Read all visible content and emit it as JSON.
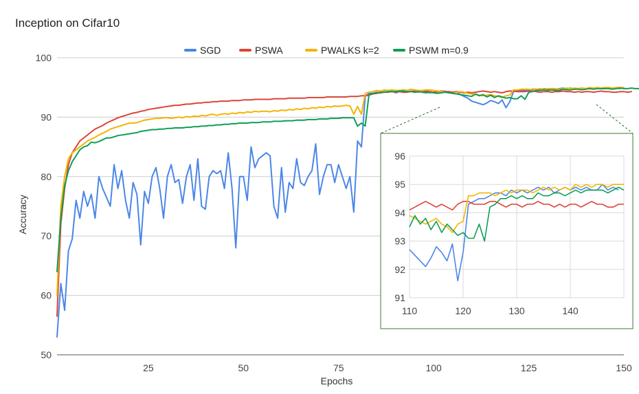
{
  "chart_data": {
    "type": "line",
    "title": "Inception on Cifar10",
    "xlabel": "Epochs",
    "ylabel": "Accuracy",
    "xlim": [
      1,
      150
    ],
    "ylim": [
      50,
      100
    ],
    "x_ticks": [
      "25",
      "50",
      "75",
      "100",
      "125",
      "150"
    ],
    "y_ticks": [
      "50",
      "60",
      "70",
      "80",
      "90",
      "100"
    ],
    "legend_position": "top",
    "series": [
      {
        "name": "SGD",
        "color": "#4a86e8",
        "values": [
          53,
          62,
          57.5,
          67.5,
          69.5,
          76,
          73,
          77.5,
          75,
          77,
          73,
          80,
          78,
          76.5,
          75,
          82,
          78,
          81,
          76,
          73,
          79,
          77,
          68.5,
          77.5,
          75.5,
          80,
          81.5,
          78,
          73,
          80,
          82,
          79,
          79.5,
          75.5,
          80,
          82,
          76,
          83,
          75,
          74.5,
          80,
          81,
          80.5,
          81,
          78,
          84,
          78,
          68,
          80,
          80,
          76,
          85,
          81.5,
          83,
          83.5,
          84,
          83.5,
          75,
          73,
          81.5,
          74,
          79,
          78,
          83,
          79,
          78.5,
          80,
          81,
          85.5,
          77,
          80,
          82,
          82,
          79,
          82,
          80,
          78,
          80,
          74,
          86,
          85,
          93.5,
          94,
          94,
          94.2,
          94.1,
          94.3,
          94.2,
          94.4,
          94.1,
          94.3,
          94.2,
          94.2,
          94.4,
          94.3,
          94.2,
          94.5,
          94.3,
          94.1,
          94.2,
          94.3,
          94.2,
          94.4,
          94.1,
          94,
          94.3,
          93.8,
          93.5,
          93.2,
          92.7,
          92.5,
          92.3,
          92.1,
          92.4,
          92.8,
          92.6,
          92.3,
          92.9,
          91.6,
          92.6,
          94.3,
          94.4,
          94.5,
          94.5,
          94.6,
          94.7,
          94.7,
          94.6,
          94.8,
          94.7,
          94.8,
          94.7,
          94.8,
          94.9,
          94.8,
          94.9,
          94.7,
          94.8,
          94.9,
          94.8,
          94.9,
          94.8,
          94.9,
          94.8,
          94.8,
          95,
          94.8,
          94.9,
          94.8
        ]
      },
      {
        "name": "PSWA",
        "color": "#db4437",
        "values": [
          56.5,
          72,
          78,
          82,
          84,
          85,
          86,
          86.5,
          87,
          87.5,
          88,
          88.3,
          88.6,
          89,
          89.3,
          89.6,
          89.9,
          90.1,
          90.3,
          90.5,
          90.7,
          90.8,
          91,
          91.1,
          91.3,
          91.4,
          91.5,
          91.6,
          91.7,
          91.8,
          91.9,
          92,
          92,
          92.1,
          92.2,
          92.2,
          92.3,
          92.4,
          92.4,
          92.5,
          92.5,
          92.6,
          92.6,
          92.7,
          92.7,
          92.7,
          92.8,
          92.8,
          92.8,
          92.9,
          92.9,
          92.9,
          93,
          93,
          93,
          93,
          93,
          93.1,
          93.1,
          93.1,
          93.1,
          93.2,
          93.2,
          93.2,
          93.2,
          93.2,
          93.3,
          93.3,
          93.3,
          93.3,
          93.3,
          93.4,
          93.4,
          93.4,
          93.4,
          93.4,
          93.4,
          93.5,
          93.5,
          93.5,
          93.6,
          93.6,
          93.7,
          93.9,
          94,
          94.1,
          94.2,
          94.2,
          94.3,
          94.2,
          94.3,
          94.2,
          94.2,
          94.3,
          94.4,
          94.3,
          94.2,
          94.4,
          94.3,
          94.2,
          94.3,
          94.4,
          94.3,
          94.3,
          94.2,
          94.3,
          94.2,
          94.1,
          94.2,
          94.1,
          94.2,
          94.3,
          94.4,
          94.3,
          94.2,
          94.3,
          94.2,
          94.1,
          94.3,
          94.4,
          94.4,
          94.3,
          94.3,
          94.3,
          94.4,
          94.4,
          94.3,
          94.2,
          94.3,
          94.3,
          94.2,
          94.3,
          94.3,
          94.4,
          94.3,
          94.3,
          94.2,
          94.3,
          94.2,
          94.3,
          94.3,
          94.2,
          94.3,
          94.4,
          94.3,
          94.3,
          94.2,
          94.2,
          94.3,
          94.3,
          94.2,
          94.3
        ]
      },
      {
        "name": "PWALKS k=2",
        "color": "#f4b400",
        "values": [
          60,
          75,
          80,
          83,
          84,
          84.5,
          85,
          85.5,
          86,
          86.3,
          86.6,
          87,
          87.3,
          87.6,
          88,
          88.2,
          88.4,
          88.6,
          88.8,
          89,
          89,
          89.1,
          89.3,
          89.5,
          89.6,
          89.7,
          89.8,
          89.8,
          89.9,
          89.9,
          89.8,
          89.9,
          90,
          89.9,
          90.1,
          90,
          90.2,
          90.1,
          90.3,
          90.2,
          90.4,
          90.5,
          90.3,
          90.5,
          90.6,
          90.5,
          90.7,
          90.6,
          90.8,
          90.7,
          90.9,
          90.8,
          91,
          90.9,
          91,
          91,
          90.9,
          91.1,
          91,
          91.2,
          91.1,
          91.3,
          91.2,
          91.4,
          91.3,
          91.5,
          91.4,
          91.6,
          91.5,
          91.7,
          91.6,
          91.8,
          91.7,
          91.9,
          91.8,
          91.9,
          92,
          91.9,
          90.5,
          91.8,
          90.5,
          94,
          94.2,
          94.3,
          94.5,
          94.4,
          94.6,
          94.5,
          94.6,
          94.5,
          94.5,
          94.6,
          94.5,
          94.7,
          94.6,
          94.5,
          94.5,
          94.6,
          94.6,
          94.5,
          94.4,
          94.3,
          94.2,
          94.1,
          94,
          94.2,
          94.3,
          94.2,
          94,
          93.9,
          93.8,
          93.7,
          93.6,
          93.7,
          93.8,
          93.6,
          93.5,
          93.3,
          93.6,
          93.7,
          94.6,
          94.6,
          94.7,
          94.7,
          94.7,
          94.6,
          94.7,
          94.8,
          94.7,
          94.8,
          94.8,
          94.8,
          94.7,
          94.8,
          94.9,
          94.8,
          94.9,
          94.8,
          94.9,
          94.8,
          95,
          94.9,
          95,
          94.9,
          95,
          95,
          94.9,
          95,
          95,
          95
        ]
      },
      {
        "name": "PSWM m=0.9",
        "color": "#0f9d58",
        "values": [
          64,
          73,
          78.5,
          81,
          82.5,
          83.5,
          84.5,
          85,
          85.2,
          85.8,
          85.7,
          85.9,
          86.2,
          86.5,
          86.5,
          86.7,
          86.9,
          87,
          87.1,
          87.2,
          87.3,
          87.4,
          87.6,
          87.7,
          87.8,
          87.9,
          87.9,
          88,
          88,
          88.1,
          88.1,
          88.2,
          88.2,
          88.2,
          88.3,
          88.3,
          88.4,
          88.4,
          88.5,
          88.5,
          88.6,
          88.6,
          88.7,
          88.7,
          88.8,
          88.8,
          88.9,
          88.9,
          89,
          89,
          89,
          89.1,
          89.1,
          89.1,
          89.2,
          89.2,
          89.2,
          89.3,
          89.3,
          89.3,
          89.4,
          89.4,
          89.4,
          89.5,
          89.5,
          89.5,
          89.6,
          89.6,
          89.6,
          89.7,
          89.7,
          89.7,
          89.8,
          89.8,
          89.8,
          89.9,
          89.9,
          89.9,
          89.9,
          88.5,
          89,
          88.5,
          93.8,
          94,
          94.1,
          94.2,
          94.2,
          94.3,
          94.3,
          94.3,
          94.4,
          94.4,
          94.3,
          94.3,
          94.2,
          94.3,
          94.2,
          94.1,
          94.2,
          94.1,
          94,
          94.1,
          94.2,
          94.1,
          94,
          93.9,
          93.8,
          93.7,
          93.6,
          93.5,
          93.9,
          93.6,
          93.8,
          93.4,
          93.7,
          93.3,
          93.6,
          93.4,
          93.2,
          93.3,
          93.1,
          93.1,
          93.6,
          93,
          94.2,
          94.3,
          94.5,
          94.5,
          94.6,
          94.5,
          94.6,
          94.5,
          94.5,
          94.7,
          94.6,
          94.6,
          94.7,
          94.7,
          94.6,
          94.7,
          94.8,
          94.7,
          94.8,
          94.8,
          94.8,
          94.8,
          94.7,
          94.8,
          94.9,
          94.8,
          94.8,
          94.9,
          94.8,
          94.8
        ]
      }
    ],
    "inset": {
      "xlim": [
        110,
        150
      ],
      "ylim": [
        91,
        96
      ],
      "x_ticks": [
        "110",
        "120",
        "130",
        "140"
      ],
      "y_ticks": [
        "91",
        "92",
        "93",
        "94",
        "95",
        "96"
      ]
    }
  }
}
